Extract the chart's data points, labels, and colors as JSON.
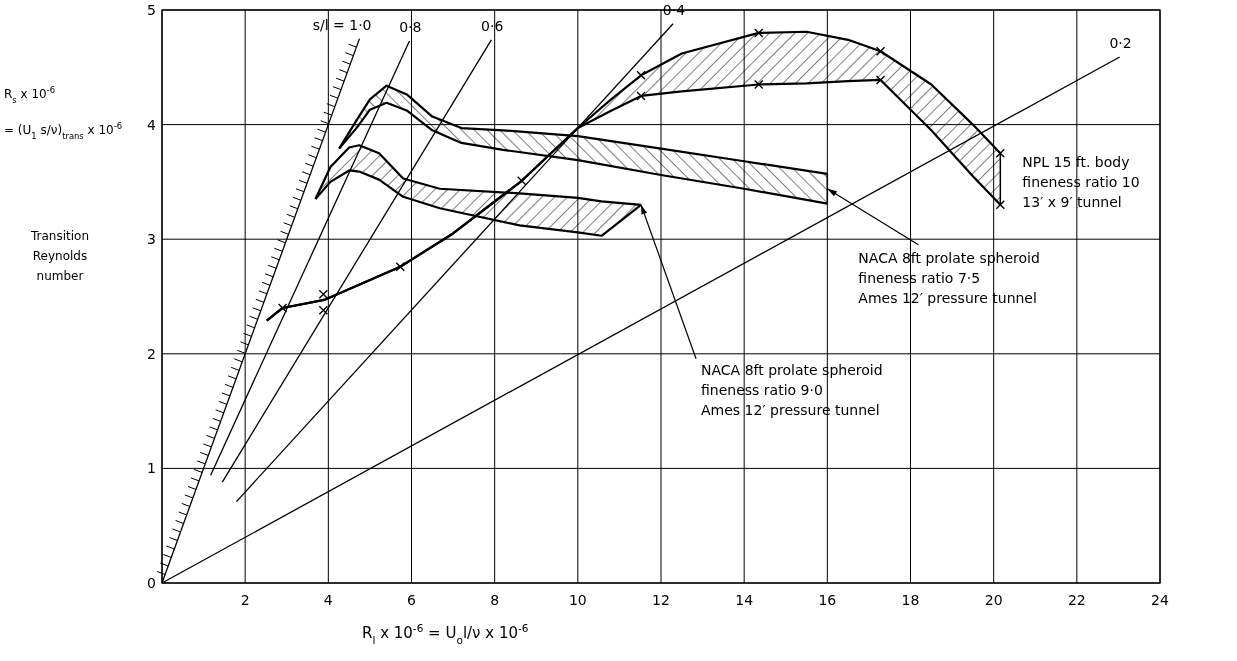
{
  "chart_data": {
    "type": "line",
    "xlabel": "R$_{l}$ x 10$^{-6}$ = U$_{o}$l/ν x 10$^{-6}$",
    "ylabel": "R$_{s}$ x 10$^{-6}$\n= (U$_{1}$ s/ν)$_{trans}$ x 10$^{-6}$\n\nTransition\nReynolds\nnumber",
    "xlim": [
      0,
      24
    ],
    "ylim": [
      0,
      5
    ],
    "xticks": [
      {
        "value": 0,
        "label": null
      },
      2,
      4,
      6,
      8,
      10,
      12,
      14,
      16,
      18,
      20,
      22,
      24
    ],
    "yticks": [
      0,
      1,
      2,
      3,
      4,
      5
    ],
    "grid": true,
    "legend": false,
    "line_style": "solid",
    "series": [
      {
        "name": "s/l = 1·0",
        "color": "#000000",
        "x": [
          0,
          4.75
        ],
        "values": [
          0,
          4.75
        ]
      },
      {
        "name": "0·8",
        "color": "#000000",
        "x": [
          1.17,
          5.95
        ],
        "values": [
          0.94,
          4.73
        ]
      },
      {
        "name": "0·6",
        "color": "#000000",
        "x": [
          1.45,
          7.92
        ],
        "values": [
          0.88,
          4.74
        ]
      },
      {
        "name": "0·4",
        "color": "#000000",
        "x": [
          1.79,
          12.29
        ],
        "values": [
          0.71,
          4.88
        ]
      },
      {
        "name": "0·2",
        "color": "#000000",
        "x": [
          0,
          23.03
        ],
        "values": [
          0,
          4.59
        ]
      },
      {
        "color": "#000000",
        "x": [
          3.69,
          4.05,
          4.5,
          4.74,
          5.22,
          5.8,
          6.68,
          8.6,
          10,
          10.57,
          11.52
        ],
        "values": [
          3.35,
          3.63,
          3.8,
          3.82,
          3.75,
          3.53,
          3.44,
          3.4,
          3.36,
          3.33,
          3.3
        ]
      },
      {
        "color": "#000000",
        "x": [
          3.69,
          4.05,
          4.5,
          4.74,
          5.22,
          5.8,
          6.68,
          8.6,
          10,
          10.57,
          11.52
        ],
        "values": [
          3.35,
          3.5,
          3.6,
          3.59,
          3.52,
          3.37,
          3.27,
          3.12,
          3.06,
          3.03,
          3.3
        ]
      },
      {
        "color": "#000000",
        "x": [
          4.26,
          4.7,
          5.0,
          5.4,
          5.9,
          6.5,
          7.2,
          8.2,
          10,
          12,
          14,
          16
        ],
        "values": [
          3.79,
          4.05,
          4.22,
          4.34,
          4.26,
          4.07,
          3.97,
          3.95,
          3.9,
          3.79,
          3.68,
          3.57
        ]
      },
      {
        "color": "#000000",
        "x": [
          4.26,
          4.7,
          5.0,
          5.4,
          5.9,
          6.5,
          7.2,
          8.2,
          10,
          12,
          14,
          16
        ],
        "values": [
          3.79,
          3.98,
          4.13,
          4.19,
          4.12,
          3.95,
          3.84,
          3.78,
          3.69,
          3.56,
          3.44,
          3.31
        ]
      },
      {
        "color": "#000000",
        "x": [
          2.52,
          2.9,
          3.9,
          5.73,
          7.0,
          8.65,
          10,
          10.8,
          11.52,
          12.5,
          14.35,
          15.5,
          16.5,
          17.28,
          18.5,
          19.5,
          20.16
        ],
        "values": [
          2.29,
          2.4,
          2.47,
          2.76,
          3.05,
          3.51,
          3.97,
          4.22,
          4.43,
          4.62,
          4.8,
          4.81,
          4.74,
          4.64,
          4.35,
          4.0,
          3.75
        ]
      },
      {
        "color": "#000000",
        "x": [
          2.52,
          2.9,
          3.9,
          5.73,
          7.0,
          8.65,
          10,
          10.8,
          11.52,
          12.5,
          14.35,
          15.5,
          16.5,
          17.28,
          18.5,
          19.5,
          20.16
        ],
        "values": [
          2.29,
          2.4,
          2.47,
          2.76,
          3.05,
          3.51,
          3.97,
          4.12,
          4.25,
          4.29,
          4.35,
          4.36,
          4.38,
          4.39,
          3.95,
          3.55,
          3.3
        ]
      },
      {
        "type": "scatter",
        "marker": "cross",
        "color": "#000000",
        "x": [
          2.9,
          3.88,
          3.88,
          5.73,
          8.65,
          11.52,
          11.52,
          14.35,
          14.35,
          17.28,
          17.28,
          20.16,
          20.16
        ],
        "values": [
          2.4,
          2.52,
          2.38,
          2.76,
          3.51,
          4.43,
          4.25,
          4.8,
          4.35,
          4.64,
          4.39,
          3.75,
          3.3
        ]
      }
    ],
    "annotations": [
      {
        "text": "NACA 8ft prolate spheroid\nfineness ratio 9·0\nAmes 12′ pressure tunnel",
        "x": 11.52,
        "y": 3.3
      },
      "NACA 8ft prolate spheroid\nfineness ratio 7·5\nAmes 12′ pressure tunnel",
      "NPL 15 ft. body\nfineness ratio 10\n13′ x 9′ tunnel"
    ]
  }
}
